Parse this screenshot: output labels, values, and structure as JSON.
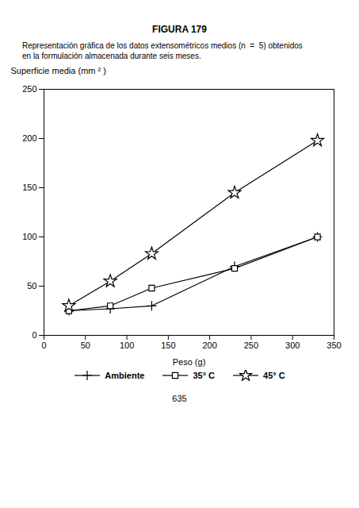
{
  "chart_data": {
    "type": "line",
    "title": "FIGURA 179",
    "subtitle": [
      "Representación gráfica de los datos extensométricos medios (n  =  5) obtenidos",
      "en la formulación almacenada durante seis meses."
    ],
    "annotations": [
      "635"
    ],
    "xlabel": "Peso (g)",
    "ylabel": "Superficie media (mm ² )",
    "x": [
      30,
      80,
      130,
      230,
      330
    ],
    "series": [
      {
        "name": "Ambiente",
        "color": "#000000",
        "marker": "plus",
        "values": [
          25,
          27,
          30,
          70,
          100
        ]
      },
      {
        "name": "35° C",
        "color": "#000000",
        "marker": "square",
        "values": [
          25,
          30,
          48,
          68,
          100
        ]
      },
      {
        "name": "45° C",
        "color": "#000000",
        "marker": "star",
        "values": [
          30,
          55,
          83,
          145,
          198
        ]
      }
    ],
    "xlim": [
      0,
      350
    ],
    "ylim": [
      0,
      250
    ],
    "xticks": [
      0,
      50,
      100,
      150,
      200,
      250,
      300,
      350
    ],
    "yticks": [
      0,
      50,
      100,
      150,
      200,
      250
    ],
    "grid": false,
    "legend": "bottom"
  }
}
